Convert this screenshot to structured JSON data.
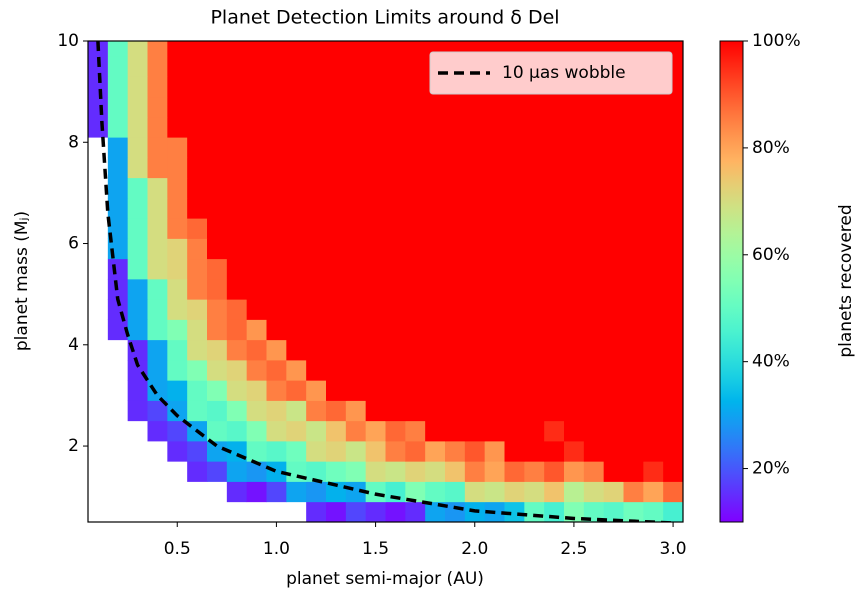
{
  "chart_data": {
    "type": "heatmap",
    "title": "Planet Detection Limits around δ Del",
    "x_label": "planet semi-major (AU)",
    "y_label": "planet mass (Mⱼ)",
    "colorbar_label": "planets recovered",
    "colormap": "rainbow",
    "clim": [
      10,
      100
    ],
    "cticks": [
      {
        "value": 20,
        "label": "20%"
      },
      {
        "value": 40,
        "label": "40%"
      },
      {
        "value": 60,
        "label": "60%"
      },
      {
        "value": 80,
        "label": "80%"
      },
      {
        "value": 100,
        "label": "100%"
      }
    ],
    "xlim": [
      0.05,
      3.05
    ],
    "ylim": [
      0.5,
      10
    ],
    "xticks": [
      {
        "value": 0.5,
        "label": "0.5"
      },
      {
        "value": 1.0,
        "label": "1.0"
      },
      {
        "value": 1.5,
        "label": "1.5"
      },
      {
        "value": 2.0,
        "label": "2.0"
      },
      {
        "value": 2.5,
        "label": "2.5"
      },
      {
        "value": 3.0,
        "label": "3.0"
      }
    ],
    "yticks": [
      2,
      4,
      6,
      8,
      10
    ],
    "x": [
      0.1,
      0.2,
      0.3,
      0.4,
      0.5,
      0.6,
      0.7,
      0.8,
      0.9,
      1.0,
      1.1,
      1.2,
      1.3,
      1.4,
      1.5,
      1.6,
      1.7,
      1.8,
      1.9,
      2.0,
      2.1,
      2.2,
      2.3,
      2.4,
      2.5,
      2.6,
      2.7,
      2.8,
      2.9,
      3.0
    ],
    "y": [
      0.7,
      1.1,
      1.5,
      1.9,
      2.3,
      2.7,
      3.1,
      3.5,
      3.9,
      4.3,
      4.7,
      5.1,
      5.5,
      5.9,
      6.3,
      6.7,
      7.1,
      7.5,
      7.9,
      8.3,
      8.7,
      9.1,
      9.5,
      9.9
    ],
    "z": [
      [
        null,
        null,
        null,
        null,
        null,
        null,
        null,
        null,
        null,
        null,
        null,
        15,
        12,
        18,
        15,
        12,
        15,
        30,
        28,
        32,
        30,
        35,
        50,
        45,
        55,
        50,
        48,
        52,
        50,
        45
      ],
      [
        null,
        null,
        null,
        null,
        null,
        null,
        null,
        15,
        12,
        18,
        30,
        28,
        32,
        30,
        50,
        45,
        55,
        50,
        48,
        70,
        68,
        72,
        70,
        75,
        65,
        70,
        72,
        85,
        80,
        88
      ],
      [
        null,
        null,
        null,
        null,
        null,
        15,
        18,
        30,
        28,
        32,
        50,
        48,
        52,
        55,
        70,
        68,
        72,
        70,
        75,
        85,
        80,
        88,
        85,
        90,
        82,
        85,
        100,
        100,
        95,
        100
      ],
      [
        null,
        null,
        null,
        null,
        15,
        18,
        30,
        32,
        50,
        48,
        52,
        70,
        72,
        68,
        75,
        85,
        88,
        80,
        85,
        90,
        82,
        100,
        100,
        100,
        95,
        100,
        100,
        100,
        100,
        100
      ],
      [
        null,
        null,
        null,
        15,
        18,
        30,
        50,
        48,
        55,
        70,
        72,
        68,
        75,
        85,
        80,
        88,
        85,
        100,
        100,
        100,
        100,
        100,
        100,
        95,
        100,
        100,
        100,
        100,
        100,
        100
      ],
      [
        null,
        null,
        15,
        18,
        30,
        50,
        48,
        55,
        70,
        72,
        68,
        85,
        88,
        82,
        100,
        100,
        100,
        100,
        100,
        100,
        100,
        100,
        100,
        100,
        100,
        100,
        100,
        100,
        100,
        100
      ],
      [
        null,
        null,
        15,
        30,
        32,
        50,
        55,
        70,
        72,
        85,
        88,
        82,
        100,
        100,
        100,
        100,
        100,
        100,
        100,
        100,
        100,
        100,
        100,
        100,
        100,
        100,
        100,
        100,
        100,
        100
      ],
      [
        null,
        null,
        15,
        30,
        50,
        55,
        70,
        72,
        85,
        88,
        82,
        100,
        100,
        100,
        100,
        100,
        100,
        100,
        100,
        100,
        100,
        100,
        100,
        100,
        100,
        100,
        100,
        100,
        100,
        100
      ],
      [
        null,
        null,
        15,
        30,
        50,
        70,
        72,
        85,
        88,
        82,
        100,
        100,
        100,
        100,
        100,
        100,
        100,
        100,
        100,
        100,
        100,
        100,
        100,
        100,
        100,
        100,
        100,
        100,
        100,
        100
      ],
      [
        null,
        15,
        30,
        50,
        55,
        70,
        85,
        88,
        82,
        100,
        100,
        100,
        100,
        100,
        100,
        100,
        100,
        100,
        100,
        100,
        100,
        100,
        100,
        100,
        100,
        100,
        100,
        100,
        100,
        100
      ],
      [
        null,
        15,
        30,
        50,
        70,
        72,
        85,
        88,
        100,
        100,
        100,
        100,
        100,
        100,
        100,
        100,
        100,
        100,
        100,
        100,
        100,
        100,
        100,
        100,
        100,
        100,
        100,
        100,
        100,
        100
      ],
      [
        null,
        15,
        30,
        50,
        70,
        85,
        88,
        100,
        100,
        100,
        100,
        100,
        100,
        100,
        100,
        100,
        100,
        100,
        100,
        100,
        100,
        100,
        100,
        100,
        100,
        100,
        100,
        100,
        100,
        100
      ],
      [
        null,
        15,
        50,
        70,
        72,
        85,
        88,
        100,
        100,
        100,
        100,
        100,
        100,
        100,
        100,
        100,
        100,
        100,
        100,
        100,
        100,
        100,
        100,
        100,
        100,
        100,
        100,
        100,
        100,
        100
      ],
      [
        null,
        30,
        50,
        70,
        72,
        85,
        100,
        100,
        100,
        100,
        100,
        100,
        100,
        100,
        100,
        100,
        100,
        100,
        100,
        100,
        100,
        100,
        100,
        100,
        100,
        100,
        100,
        100,
        100,
        100
      ],
      [
        null,
        30,
        50,
        70,
        85,
        88,
        100,
        100,
        100,
        100,
        100,
        100,
        100,
        100,
        100,
        100,
        100,
        100,
        100,
        100,
        100,
        100,
        100,
        100,
        100,
        100,
        100,
        100,
        100,
        100
      ],
      [
        null,
        30,
        50,
        70,
        85,
        100,
        100,
        100,
        100,
        100,
        100,
        100,
        100,
        100,
        100,
        100,
        100,
        100,
        100,
        100,
        100,
        100,
        100,
        100,
        100,
        100,
        100,
        100,
        100,
        100
      ],
      [
        null,
        30,
        50,
        70,
        85,
        100,
        100,
        100,
        100,
        100,
        100,
        100,
        100,
        100,
        100,
        100,
        100,
        100,
        100,
        100,
        100,
        100,
        100,
        100,
        100,
        100,
        100,
        100,
        100,
        100
      ],
      [
        null,
        30,
        70,
        85,
        85,
        100,
        100,
        100,
        100,
        100,
        100,
        100,
        100,
        100,
        100,
        100,
        100,
        100,
        100,
        100,
        100,
        100,
        100,
        100,
        100,
        100,
        100,
        100,
        100,
        100
      ],
      [
        null,
        30,
        70,
        85,
        85,
        100,
        100,
        100,
        100,
        100,
        100,
        100,
        100,
        100,
        100,
        100,
        100,
        100,
        100,
        100,
        100,
        100,
        100,
        100,
        100,
        100,
        100,
        100,
        100,
        100
      ],
      [
        15,
        50,
        70,
        85,
        100,
        100,
        100,
        100,
        100,
        100,
        100,
        100,
        100,
        100,
        100,
        100,
        100,
        100,
        100,
        100,
        100,
        100,
        100,
        100,
        100,
        100,
        100,
        100,
        100,
        100
      ],
      [
        15,
        50,
        70,
        85,
        100,
        100,
        100,
        100,
        100,
        100,
        100,
        100,
        100,
        100,
        100,
        100,
        100,
        100,
        100,
        100,
        100,
        100,
        100,
        100,
        100,
        100,
        100,
        100,
        100,
        100
      ],
      [
        15,
        50,
        70,
        85,
        100,
        100,
        100,
        100,
        100,
        100,
        100,
        100,
        100,
        100,
        100,
        100,
        100,
        100,
        100,
        100,
        100,
        100,
        100,
        100,
        100,
        100,
        100,
        100,
        100,
        100
      ],
      [
        15,
        50,
        70,
        85,
        100,
        100,
        100,
        100,
        100,
        100,
        100,
        100,
        100,
        100,
        100,
        100,
        100,
        100,
        100,
        100,
        100,
        100,
        100,
        100,
        100,
        100,
        100,
        100,
        100,
        100
      ],
      [
        15,
        50,
        70,
        85,
        100,
        100,
        100,
        100,
        100,
        100,
        100,
        100,
        100,
        100,
        100,
        100,
        100,
        100,
        100,
        100,
        100,
        100,
        100,
        100,
        100,
        100,
        100,
        100,
        100,
        100
      ]
    ],
    "lines": [
      {
        "name": "10 μas wobble",
        "color": "#000000",
        "dashed": true,
        "x": [
          0.1,
          0.12,
          0.15,
          0.2,
          0.25,
          0.3,
          0.4,
          0.5,
          0.7,
          1.0,
          1.5,
          2.0,
          2.5,
          3.0
        ],
        "y": [
          10,
          8.4,
          6.6,
          4.9,
          4.2,
          3.6,
          3.0,
          2.6,
          2.0,
          1.5,
          1.05,
          0.72,
          0.57,
          0.48
        ]
      }
    ],
    "legend": "upper right"
  }
}
